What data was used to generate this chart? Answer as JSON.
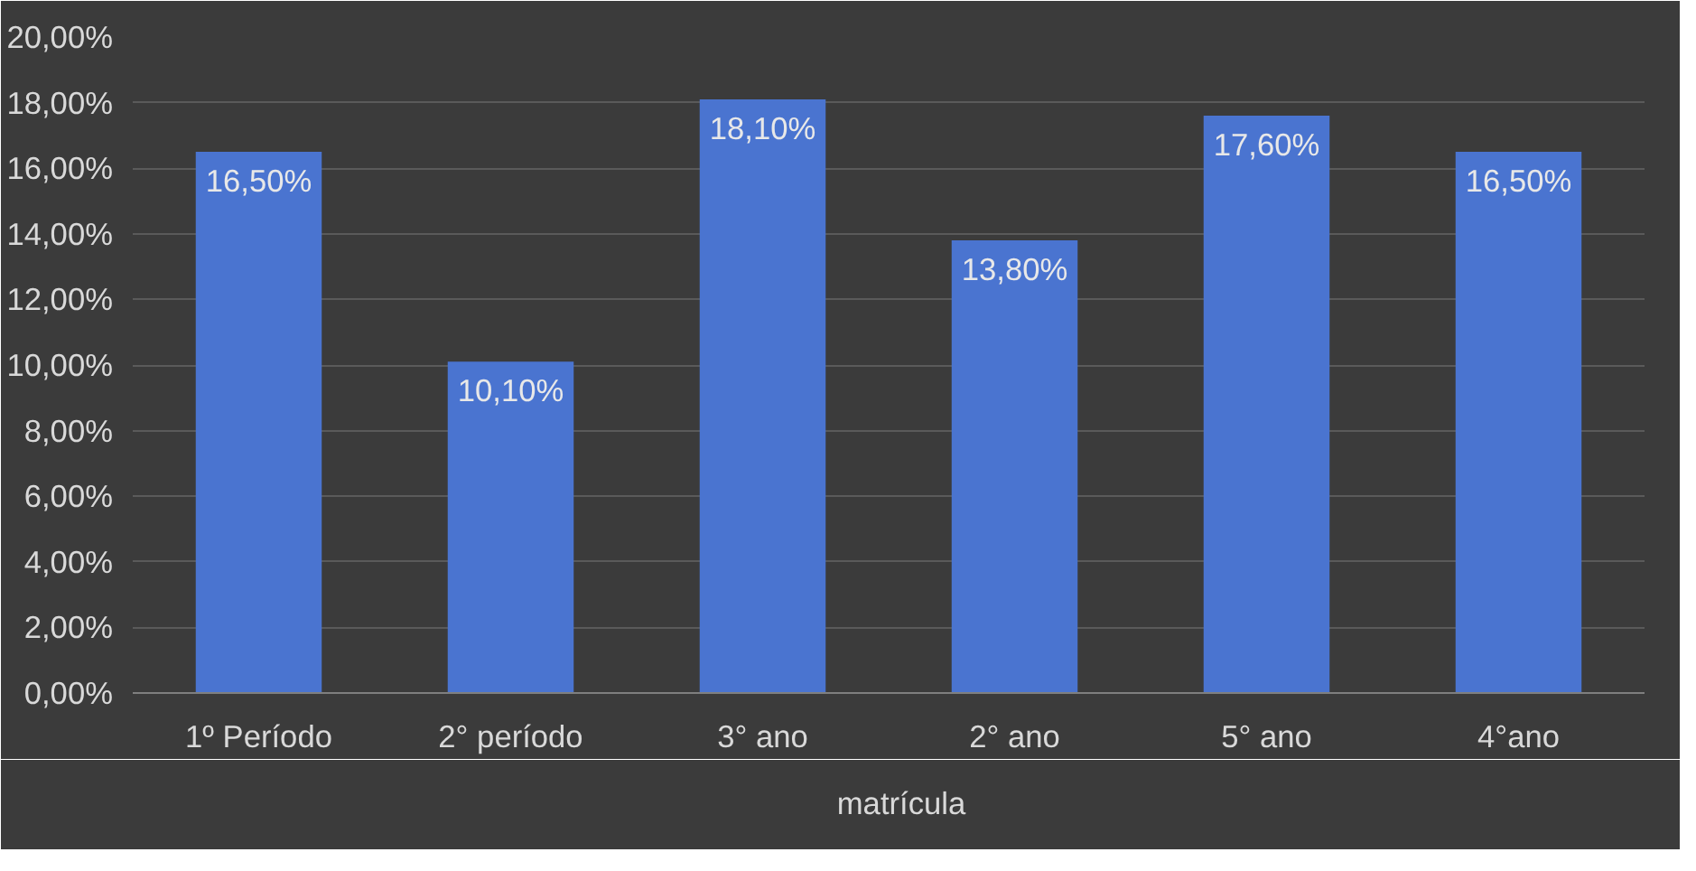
{
  "chart_data": {
    "type": "bar",
    "categories": [
      "1º Período",
      "2° período",
      "3° ano",
      "2° ano",
      "5° ano",
      "4°ano"
    ],
    "series": [
      {
        "name": "matrícula",
        "color": "#4a74d0",
        "values": [
          16.5,
          10.1,
          18.1,
          13.8,
          17.6,
          16.5
        ],
        "value_labels": [
          "16,50%",
          "10,10%",
          "18,10%",
          "13,80%",
          "17,60%",
          "16,50%"
        ]
      }
    ],
    "ylim": [
      0,
      20
    ],
    "yticks": [
      {
        "value": 0,
        "label": "0,00%"
      },
      {
        "value": 2,
        "label": "2,00%"
      },
      {
        "value": 4,
        "label": "4,00%"
      },
      {
        "value": 6,
        "label": "6,00%"
      },
      {
        "value": 8,
        "label": "8,00%"
      },
      {
        "value": 10,
        "label": "10,00%"
      },
      {
        "value": 12,
        "label": "12,00%"
      },
      {
        "value": 14,
        "label": "14,00%"
      },
      {
        "value": 16,
        "label": "16,00%"
      },
      {
        "value": 18,
        "label": "18,00%"
      },
      {
        "value": 20,
        "label": "20,00%"
      }
    ],
    "grid": "y",
    "legend": "bottom"
  }
}
